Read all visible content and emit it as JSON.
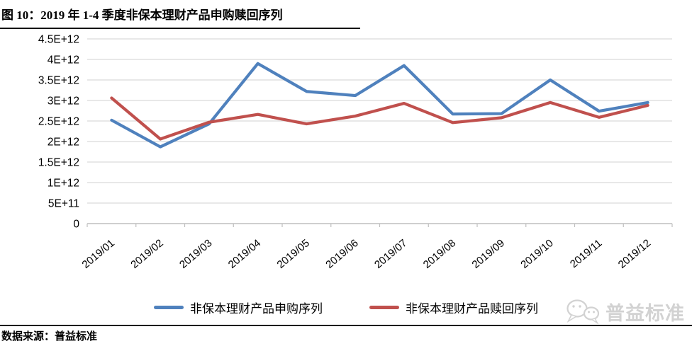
{
  "title": "图 10：2019 年 1-4 季度非保本理财产品申购赎回序列",
  "source_note": "数据来源：普益标准",
  "watermark": {
    "text": "普益标准",
    "icon": "chat-bubbles-icon"
  },
  "colors": {
    "subscription_line": "#4F81BD",
    "redemption_line": "#C0504D",
    "gridline": "#D9D9D9",
    "axis": "#BFBFBF",
    "watermark": "#D2D2D2",
    "title_text": "#000000"
  },
  "chart_data": {
    "type": "line",
    "title": "图 10：2019 年 1-4 季度非保本理财产品申购赎回序列",
    "categories": [
      "2019/01",
      "2019/02",
      "2019/03",
      "2019/04",
      "2019/05",
      "2019/06",
      "2019/07",
      "2019/08",
      "2019/09",
      "2019/10",
      "2019/11",
      "2019/12"
    ],
    "series": [
      {
        "name": "非保本理财产品申购序列",
        "color": "#4F81BD",
        "values": [
          2520000000000.0,
          1870000000000.0,
          2430000000000.0,
          3900000000000.0,
          3220000000000.0,
          3120000000000.0,
          3850000000000.0,
          2670000000000.0,
          2680000000000.0,
          3500000000000.0,
          2740000000000.0,
          2950000000000.0
        ]
      },
      {
        "name": "非保本理财产品赎回序列",
        "color": "#C0504D",
        "values": [
          3060000000000.0,
          2060000000000.0,
          2470000000000.0,
          2660000000000.0,
          2430000000000.0,
          2620000000000.0,
          2930000000000.0,
          2460000000000.0,
          2580000000000.0,
          2950000000000.0,
          2590000000000.0,
          2880000000000.0
        ]
      }
    ],
    "xlabel": "",
    "ylabel": "",
    "ylim": [
      0,
      4500000000000.0
    ],
    "ytick_step": 500000000000.0,
    "ytick_labels": [
      "0",
      "5E+11",
      "1E+12",
      "1.5E+12",
      "2E+12",
      "2.5E+12",
      "3E+12",
      "3.5E+12",
      "4E+12",
      "4.5E+12"
    ],
    "grid": true,
    "legend_position": "bottom"
  }
}
